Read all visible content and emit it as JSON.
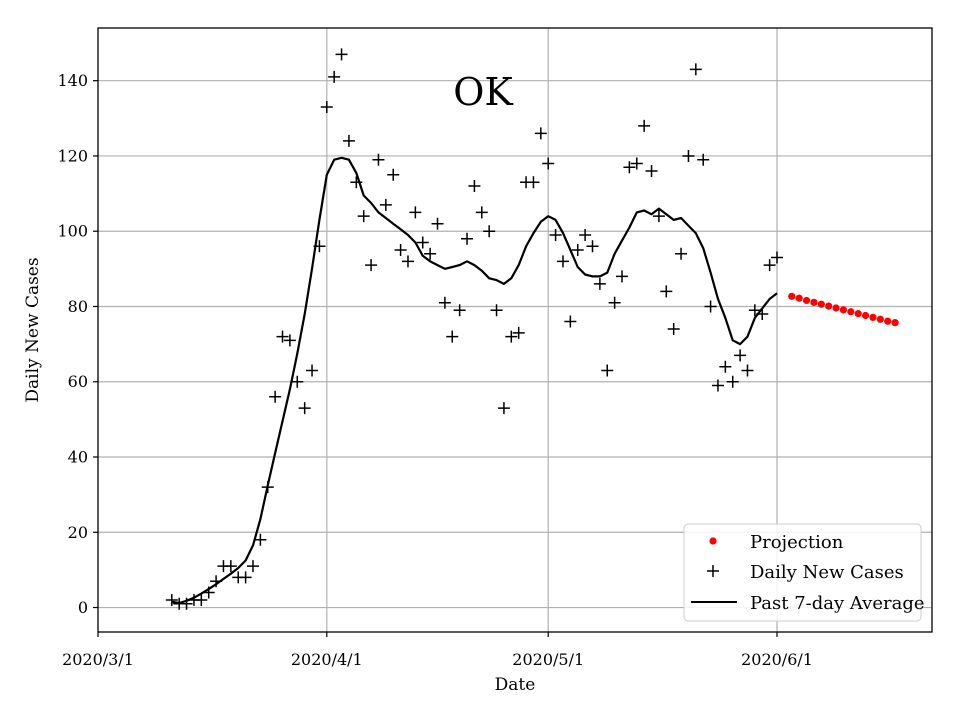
{
  "chart_data": {
    "type": "line",
    "title": "OK",
    "xlabel": "Date",
    "ylabel": "Daily New Cases",
    "xlim_days": [
      0,
      113
    ],
    "ylim": [
      -6.5,
      154
    ],
    "grid": true,
    "legend_position": "lower-right",
    "x_ticks": [
      {
        "label": "2020/3/1",
        "day": 0
      },
      {
        "label": "2020/4/1",
        "day": 31
      },
      {
        "label": "2020/5/1",
        "day": 61
      },
      {
        "label": "2020/6/1",
        "day": 92
      }
    ],
    "y_ticks": [
      0,
      20,
      40,
      60,
      80,
      100,
      120,
      140
    ],
    "x_day_zero": "2020/3/1",
    "legend": [
      {
        "label": "Projection",
        "kind": "dot",
        "color": "#ff0000"
      },
      {
        "label": "Daily New Cases",
        "kind": "plus",
        "color": "#000000"
      },
      {
        "label": "Past 7-day Average",
        "kind": "line",
        "color": "#000000"
      }
    ],
    "series": [
      {
        "name": "Daily New Cases",
        "style": "plus",
        "start_day": 10,
        "values": [
          2,
          1,
          1,
          2,
          2,
          4,
          7,
          11,
          11,
          8,
          8,
          11,
          18,
          32,
          56,
          72,
          71,
          60,
          53,
          63,
          96,
          133,
          141,
          147,
          124,
          113,
          104,
          91,
          119,
          107,
          115,
          95,
          92,
          105,
          97,
          94,
          102,
          81,
          72,
          79,
          98,
          112,
          105,
          100,
          79,
          53,
          72,
          73,
          113,
          113,
          126,
          118,
          99,
          92,
          76,
          95,
          99,
          96,
          86,
          63,
          81,
          88,
          117,
          118,
          128,
          116,
          104,
          84,
          74,
          94,
          120,
          143,
          119,
          80,
          59,
          64,
          60,
          67,
          63,
          79,
          78,
          91,
          93
        ]
      },
      {
        "name": "Past 7-day Average",
        "style": "line",
        "start_day": 10,
        "values": [
          1.5,
          1.2,
          1.8,
          2.6,
          3.7,
          4.9,
          6.2,
          7.6,
          9.0,
          10.5,
          12.5,
          16.5,
          23.5,
          32.5,
          41,
          49.5,
          58,
          67.5,
          78,
          90,
          103,
          115,
          119,
          119.5,
          119,
          115.5,
          109.5,
          107.5,
          105,
          103.5,
          102,
          100.5,
          99,
          97,
          93.5,
          92,
          91,
          90,
          90.5,
          91,
          92,
          91,
          89.5,
          87.5,
          87,
          86,
          87.5,
          91,
          96,
          99.5,
          102.5,
          104,
          103,
          99.5,
          95,
          90.5,
          88.5,
          88,
          88,
          89,
          94,
          97.5,
          101,
          105,
          105.5,
          104.5,
          106,
          104.5,
          103,
          103.5,
          101.5,
          99.5,
          95.5,
          89,
          82,
          77,
          71,
          70,
          72,
          77,
          79.5,
          82,
          83.5
        ]
      },
      {
        "name": "Projection",
        "style": "dot",
        "start_day": 94,
        "values": [
          82.7,
          82.2,
          81.6,
          81.1,
          80.6,
          80.1,
          79.6,
          79.1,
          78.6,
          78.1,
          77.6,
          77.1,
          76.6,
          76.1,
          75.7
        ]
      }
    ]
  }
}
